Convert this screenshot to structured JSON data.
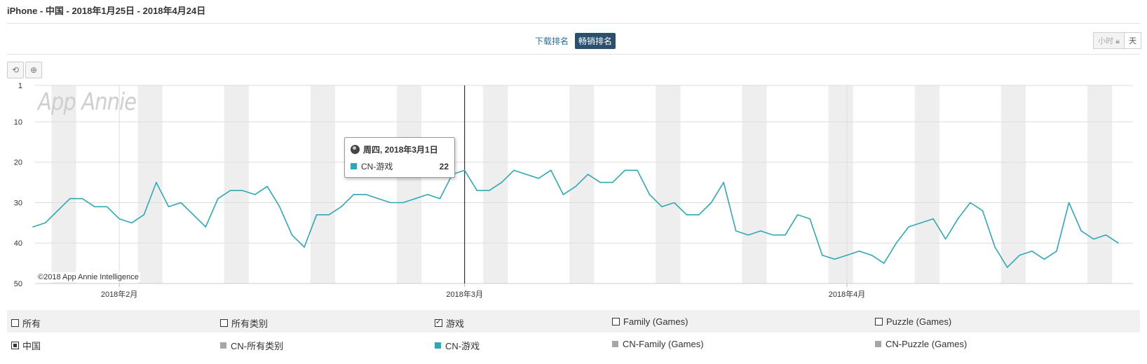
{
  "header": {
    "title": "iPhone - 中国 - 2018年1月25日 - 2018年4月24日"
  },
  "rank_tabs": [
    {
      "label": "下载排名",
      "active": false
    },
    {
      "label": "畅销排名",
      "active": true
    }
  ],
  "granularity": [
    {
      "label": "小时",
      "active": false
    },
    {
      "label": "天",
      "active": true
    }
  ],
  "toolbar": {
    "reset_icon": "reset-icon",
    "zoom_icon": "zoom-icon"
  },
  "watermark": "App Annie",
  "copyright": "©2018 App Annie Intelligence",
  "tooltip": {
    "date": "周四, 2018年3月1日",
    "series": "CN-游戏",
    "value": "22",
    "icon": "globe-icon"
  },
  "colors": {
    "series": "#2fa8b4",
    "band": "#eeeeee",
    "muted": "#a6a6a6"
  },
  "chart_data": {
    "type": "line",
    "y_inverted": true,
    "ylim": [
      1,
      50
    ],
    "yticks": [
      1,
      10,
      20,
      30,
      40,
      50
    ],
    "x_start": "2018-01-25",
    "x_end": "2018-04-24",
    "x_tick_labels": [
      {
        "date": "2018-02-01",
        "label": "2018年2月"
      },
      {
        "date": "2018-03-01",
        "label": "2018年3月"
      },
      {
        "date": "2018-04-01",
        "label": "2018年4月"
      }
    ],
    "crosshair_date": "2018-03-01",
    "weekend_bands": [
      "2018-01-27",
      "2018-02-03",
      "2018-02-10",
      "2018-02-17",
      "2018-02-24",
      "2018-03-03",
      "2018-03-10",
      "2018-03-17",
      "2018-03-24",
      "2018-03-31",
      "2018-04-07",
      "2018-04-14",
      "2018-04-21"
    ],
    "series": [
      {
        "name": "CN-游戏",
        "values": [
          36,
          35,
          32,
          29,
          29,
          31,
          31,
          34,
          35,
          33,
          25,
          31,
          30,
          33,
          36,
          29,
          27,
          27,
          28,
          26,
          31,
          38,
          41,
          33,
          33,
          31,
          28,
          28,
          29,
          30,
          30,
          29,
          28,
          29,
          23,
          22,
          27,
          27,
          25,
          22,
          23,
          24,
          22,
          28,
          26,
          23,
          25,
          25,
          22,
          22,
          28,
          31,
          30,
          33,
          33,
          30,
          25,
          37,
          38,
          37,
          38,
          38,
          33,
          34,
          43,
          44,
          43,
          42,
          43,
          45,
          40,
          36,
          35,
          34,
          39,
          34,
          30,
          32,
          41,
          46,
          43,
          42,
          44,
          42,
          30,
          37,
          39,
          38,
          40
        ]
      }
    ]
  },
  "legend": {
    "row1": [
      {
        "label": "所有",
        "checked": false
      },
      {
        "label": "所有类别",
        "checked": false
      },
      {
        "label": "游戏",
        "checked": true
      },
      {
        "label": "Family (Games)",
        "checked": false
      },
      {
        "label": "Puzzle (Games)",
        "checked": false
      }
    ],
    "row2": [
      {
        "label": "中国",
        "type": "checkbox-filled"
      },
      {
        "label": "CN-所有类别",
        "color": "#a6a6a6"
      },
      {
        "label": "CN-游戏",
        "color": "#2fa8b4"
      },
      {
        "label": "CN-Family (Games)",
        "color": "#a6a6a6"
      },
      {
        "label": "CN-Puzzle (Games)",
        "color": "#a6a6a6"
      }
    ]
  }
}
